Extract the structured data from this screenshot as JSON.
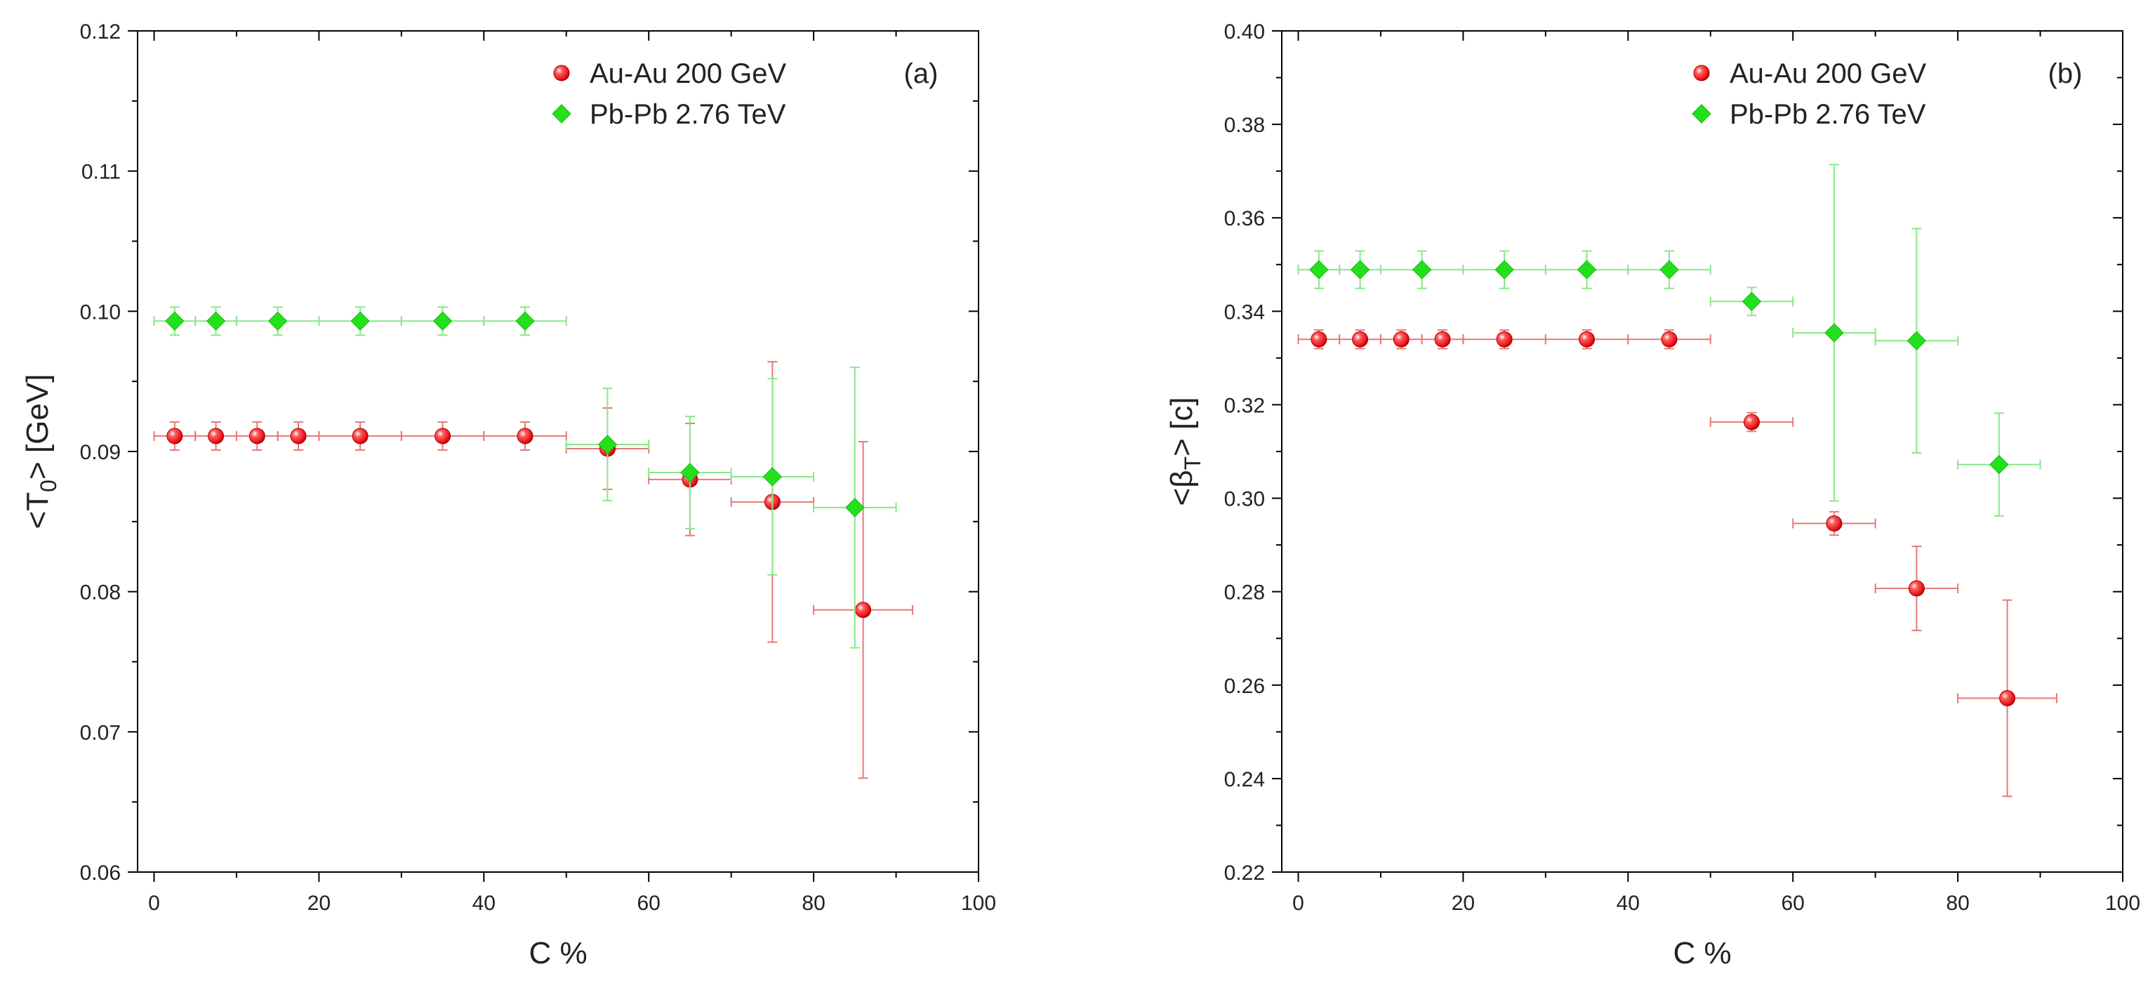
{
  "chart_data": [
    {
      "type": "scatter",
      "panel_label": "(a)",
      "xlabel": "C %",
      "ylabel_parts": {
        "pre": "<T",
        "sub": "0",
        "post": "> [GeV]"
      },
      "xlim": [
        -2,
        100
      ],
      "ylim": [
        0.06,
        0.12
      ],
      "xticks": [
        0,
        20,
        40,
        60,
        80,
        100
      ],
      "xtick_labels": [
        "0",
        "20",
        "40",
        "60",
        "80",
        "100"
      ],
      "yticks": [
        0.06,
        0.07,
        0.08,
        0.09,
        0.1,
        0.11,
        0.12
      ],
      "ytick_labels": [
        "0.06",
        "0.07",
        "0.08",
        "0.09",
        "0.10",
        "0.11",
        "0.12"
      ],
      "legend_position": "top-right",
      "series": [
        {
          "name": "Au-Au 200 GeV",
          "marker": "sphere",
          "color": "#e8141a",
          "errcolor": "#e87878",
          "points": [
            {
              "x": 2.5,
              "y": 0.0911,
              "xerr": 2.5,
              "yerr": 0.001
            },
            {
              "x": 7.5,
              "y": 0.0911,
              "xerr": 2.5,
              "yerr": 0.001
            },
            {
              "x": 12.5,
              "y": 0.0911,
              "xerr": 2.5,
              "yerr": 0.001
            },
            {
              "x": 17.5,
              "y": 0.0911,
              "xerr": 2.5,
              "yerr": 0.001
            },
            {
              "x": 25,
              "y": 0.0911,
              "xerr": 5,
              "yerr": 0.001
            },
            {
              "x": 35,
              "y": 0.0911,
              "xerr": 5,
              "yerr": 0.001
            },
            {
              "x": 45,
              "y": 0.0911,
              "xerr": 5,
              "yerr": 0.001
            },
            {
              "x": 55,
              "y": 0.0902,
              "xerr": 5,
              "yerr": 0.0029
            },
            {
              "x": 65,
              "y": 0.088,
              "xerr": 5,
              "yerr": 0.004
            },
            {
              "x": 75,
              "y": 0.0864,
              "xerr": 5,
              "yerr": 0.01
            },
            {
              "x": 86,
              "y": 0.0787,
              "xerr": 6,
              "yerr": 0.012
            }
          ]
        },
        {
          "name": "Pb-Pb 2.76 TeV",
          "marker": "diamond",
          "color": "#22e11a",
          "errcolor": "#88e888",
          "points": [
            {
              "x": 2.5,
              "y": 0.0993,
              "xerr": 2.5,
              "yerr": 0.001
            },
            {
              "x": 7.5,
              "y": 0.0993,
              "xerr": 2.5,
              "yerr": 0.001
            },
            {
              "x": 15,
              "y": 0.0993,
              "xerr": 5,
              "yerr": 0.001
            },
            {
              "x": 25,
              "y": 0.0993,
              "xerr": 5,
              "yerr": 0.001
            },
            {
              "x": 35,
              "y": 0.0993,
              "xerr": 5,
              "yerr": 0.001
            },
            {
              "x": 45,
              "y": 0.0993,
              "xerr": 5,
              "yerr": 0.001
            },
            {
              "x": 55,
              "y": 0.0905,
              "xerr": 5,
              "yerr": 0.004
            },
            {
              "x": 65,
              "y": 0.0885,
              "xerr": 5,
              "yerr": 0.004
            },
            {
              "x": 75,
              "y": 0.0882,
              "xerr": 5,
              "yerr": 0.007
            },
            {
              "x": 85,
              "y": 0.086,
              "xerr": 5,
              "yerr": 0.01
            }
          ]
        }
      ]
    },
    {
      "type": "scatter",
      "panel_label": "(b)",
      "xlabel": "C %",
      "ylabel_parts": {
        "pre": "<β",
        "sub": "T",
        "post": "> [c]"
      },
      "xlim": [
        -2,
        100
      ],
      "ylim": [
        0.22,
        0.4
      ],
      "xticks": [
        0,
        20,
        40,
        60,
        80,
        100
      ],
      "xtick_labels": [
        "0",
        "20",
        "40",
        "60",
        "80",
        "100"
      ],
      "yticks": [
        0.22,
        0.24,
        0.26,
        0.28,
        0.3,
        0.32,
        0.34,
        0.36,
        0.38,
        0.4
      ],
      "ytick_labels": [
        "0.22",
        "0.24",
        "0.26",
        "0.28",
        "0.30",
        "0.32",
        "0.34",
        "0.36",
        "0.38",
        "0.40"
      ],
      "legend_position": "top-right",
      "series": [
        {
          "name": "Au-Au 200 GeV",
          "marker": "sphere",
          "color": "#e8141a",
          "errcolor": "#e87878",
          "points": [
            {
              "x": 2.5,
              "y": 0.334,
              "xerr": 2.5,
              "yerr": 0.002
            },
            {
              "x": 7.5,
              "y": 0.334,
              "xerr": 2.5,
              "yerr": 0.002
            },
            {
              "x": 12.5,
              "y": 0.334,
              "xerr": 2.5,
              "yerr": 0.002
            },
            {
              "x": 17.5,
              "y": 0.334,
              "xerr": 2.5,
              "yerr": 0.002
            },
            {
              "x": 25,
              "y": 0.334,
              "xerr": 5,
              "yerr": 0.002
            },
            {
              "x": 35,
              "y": 0.334,
              "xerr": 5,
              "yerr": 0.002
            },
            {
              "x": 45,
              "y": 0.334,
              "xerr": 5,
              "yerr": 0.002
            },
            {
              "x": 55,
              "y": 0.3163,
              "xerr": 5,
              "yerr": 0.002
            },
            {
              "x": 65,
              "y": 0.2946,
              "xerr": 5,
              "yerr": 0.0025
            },
            {
              "x": 75,
              "y": 0.2807,
              "xerr": 5,
              "yerr": 0.009
            },
            {
              "x": 86,
              "y": 0.2572,
              "xerr": 6,
              "yerr": 0.021
            }
          ]
        },
        {
          "name": "Pb-Pb 2.76 TeV",
          "marker": "diamond",
          "color": "#22e11a",
          "errcolor": "#88e888",
          "points": [
            {
              "x": 2.5,
              "y": 0.3489,
              "xerr": 2.5,
              "yerr": 0.004
            },
            {
              "x": 7.5,
              "y": 0.3489,
              "xerr": 2.5,
              "yerr": 0.004
            },
            {
              "x": 15,
              "y": 0.3489,
              "xerr": 5,
              "yerr": 0.004
            },
            {
              "x": 25,
              "y": 0.3489,
              "xerr": 5,
              "yerr": 0.004
            },
            {
              "x": 35,
              "y": 0.3489,
              "xerr": 5,
              "yerr": 0.004
            },
            {
              "x": 45,
              "y": 0.3489,
              "xerr": 5,
              "yerr": 0.004
            },
            {
              "x": 55,
              "y": 0.3421,
              "xerr": 5,
              "yerr": 0.003
            },
            {
              "x": 65,
              "y": 0.3354,
              "xerr": 5,
              "yerr": 0.036
            },
            {
              "x": 75,
              "y": 0.3337,
              "xerr": 5,
              "yerr": 0.024
            },
            {
              "x": 85,
              "y": 0.3072,
              "xerr": 5,
              "yerr": 0.011
            }
          ]
        }
      ]
    }
  ]
}
